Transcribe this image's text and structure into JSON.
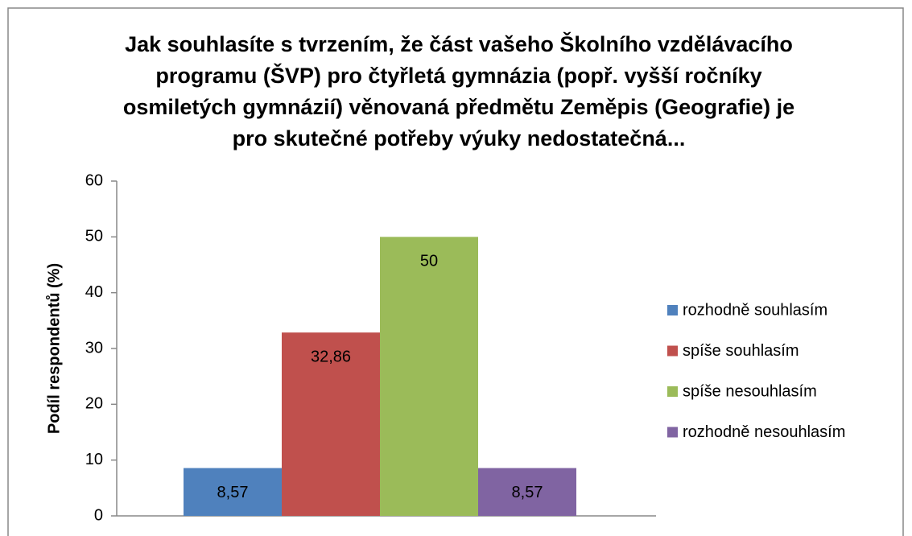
{
  "chart_data": {
    "type": "bar",
    "title": "Jak souhlasíte s tvrzením, že část vašeho Školního vzdělávacího programu (ŠVP) pro čtyřletá gymnázia (popř. vyšší ročníky osmiletých gymnázií) věnovaná předmětu Zeměpis (Geografie) je pro skutečné potřeby výuky nedostatečná...",
    "y_label": "Podíl respondentů (%)",
    "categories": [
      null
    ],
    "series": [
      {
        "name": "rozhodně souhlasím",
        "color": "#4f81bd",
        "values": [
          8.57
        ],
        "value_labels": [
          "8,57"
        ]
      },
      {
        "name": "spíše souhlasím",
        "color": "#c0504d",
        "values": [
          32.86
        ],
        "value_labels": [
          "32,86"
        ]
      },
      {
        "name": "spíše nesouhlasím",
        "color": "#9bbb59",
        "values": [
          50
        ],
        "value_labels": [
          "50"
        ]
      },
      {
        "name": "rozhodně nesouhlasím",
        "color": "#8064a2",
        "values": [
          8.57
        ],
        "value_labels": [
          "8,57"
        ]
      }
    ],
    "ylim": [
      0,
      60
    ],
    "yticks": [
      0,
      10,
      20,
      30,
      40,
      50,
      60
    ],
    "grid": false,
    "legend": "right"
  }
}
